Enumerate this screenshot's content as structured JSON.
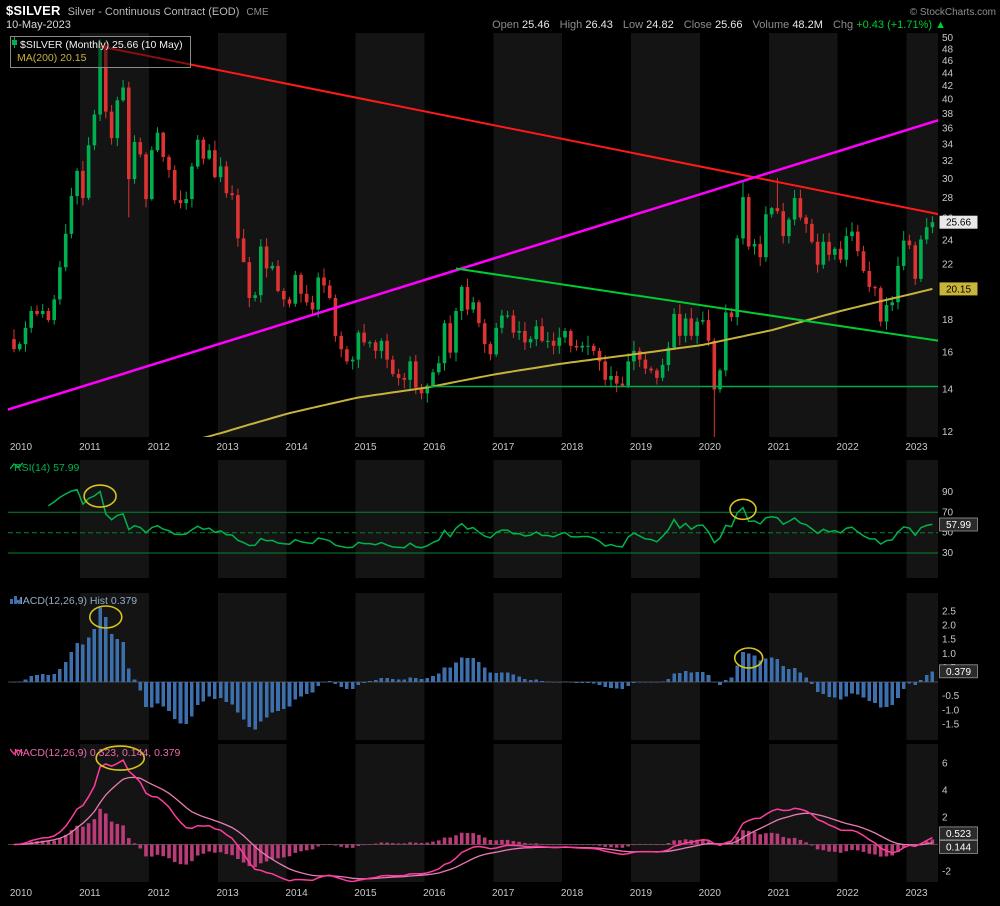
{
  "header": {
    "symbol": "$SILVER",
    "title": "Silver - Continuous Contract (EOD)",
    "exchange": "CME",
    "date": "10-May-2023",
    "copyright": "© StockCharts.com",
    "quote": {
      "open_label": "Open",
      "open": "25.46",
      "high_label": "High",
      "high": "26.43",
      "low_label": "Low",
      "low": "24.82",
      "close_label": "Close",
      "close": "25.66",
      "volume_label": "Volume",
      "volume": "48.2M",
      "chg_label": "Chg",
      "chg": "+0.43 (+1.71%)",
      "chg_dir": "▲"
    }
  },
  "colors": {
    "band": "#141414",
    "up": "#00b050",
    "down": "#dd3333",
    "ma": "#c7b23a",
    "rsi": "#00b44c",
    "rsi_ref": "#00882a",
    "hist": "#3e6fad",
    "macd_line": "#ff3d9e",
    "macd_signal": "#e87bb4",
    "macd_hist": "#b93b78",
    "circle": "#d8c51c",
    "axis_text": "#c8c8c8",
    "zero_line": "#4a4a4a"
  },
  "chart_data": [
    {
      "type": "candlestick",
      "name": "$SILVER Monthly price",
      "legend": {
        "line1": "$SILVER (Monthly) 25.66 (10 May)",
        "line2": "MA(200) 20.15"
      },
      "years": [
        "2010",
        "2011",
        "2012",
        "2013",
        "2014",
        "2015",
        "2016",
        "2017",
        "2018",
        "2019",
        "2020",
        "2021",
        "2022",
        "2023"
      ],
      "log_scale": true,
      "ylim": [
        11.8,
        50.9
      ],
      "yticks": [
        "50",
        "48",
        "46",
        "44",
        "42",
        "40",
        "38",
        "36",
        "34",
        "32",
        "30",
        "28",
        "26",
        "24",
        "22",
        "20",
        "18",
        "16",
        "14",
        "12"
      ],
      "first_open": 16.8,
      "closes": [
        16.2,
        16.5,
        17.5,
        18.6,
        18.4,
        18.6,
        18.0,
        19.4,
        21.8,
        24.6,
        28.2,
        30.9,
        28.0,
        33.9,
        37.9,
        48.6,
        38.3,
        34.8,
        39.9,
        41.8,
        30.0,
        34.3,
        32.8,
        27.9,
        33.3,
        35.5,
        32.5,
        31.0,
        27.8,
        27.5,
        27.9,
        31.4,
        34.6,
        32.3,
        33.3,
        30.2,
        31.4,
        28.5,
        28.3,
        24.2,
        22.2,
        19.5,
        19.7,
        23.5,
        21.7,
        21.9,
        20.0,
        19.4,
        19.1,
        21.2,
        19.8,
        19.2,
        18.7,
        21.0,
        20.4,
        19.5,
        17.0,
        16.2,
        15.5,
        15.6,
        17.2,
        16.6,
        16.6,
        16.1,
        16.7,
        15.6,
        14.8,
        14.6,
        14.5,
        15.5,
        14.1,
        13.8,
        14.2,
        14.9,
        15.4,
        17.8,
        16.0,
        18.6,
        20.3,
        18.7,
        19.2,
        17.8,
        16.5,
        15.9,
        17.5,
        18.3,
        18.3,
        17.2,
        17.3,
        16.6,
        16.8,
        17.6,
        16.7,
        16.7,
        16.4,
        16.9,
        17.3,
        16.4,
        16.3,
        16.4,
        16.4,
        16.1,
        15.5,
        14.5,
        14.7,
        14.3,
        14.2,
        15.5,
        16.1,
        15.6,
        15.1,
        15.0,
        14.6,
        15.3,
        16.3,
        18.4,
        17.0,
        18.1,
        17.0,
        17.9,
        18.0,
        16.7,
        14.0,
        15.0,
        18.5,
        18.2,
        24.2,
        28.1,
        23.5,
        23.7,
        22.6,
        26.4,
        27.0,
        26.7,
        24.4,
        25.9,
        28.0,
        26.1,
        25.5,
        23.9,
        22.0,
        23.9,
        22.8,
        23.3,
        22.4,
        24.4,
        24.8,
        23.1,
        21.5,
        20.3,
        20.2,
        17.9,
        19.0,
        19.2,
        21.9,
        24.0,
        23.6,
        20.9,
        24.1,
        25.2,
        25.66
      ],
      "wick_overrides": {
        "15": {
          "high": 49.8
        },
        "20": {
          "low": 26.1
        },
        "40": {
          "low": 23.0
        },
        "122": {
          "low": 11.65
        },
        "127": {
          "high": 29.9
        },
        "133": {
          "high": 30.1
        }
      },
      "ma200": {
        "period": 200,
        "anchors": [
          [
            30,
            11.55
          ],
          [
            36,
            11.95
          ],
          [
            48,
            12.85
          ],
          [
            60,
            13.6
          ],
          [
            72,
            14.1
          ],
          [
            84,
            14.8
          ],
          [
            96,
            15.4
          ],
          [
            108,
            15.9
          ],
          [
            120,
            16.45
          ],
          [
            132,
            17.35
          ],
          [
            144,
            18.6
          ],
          [
            156,
            19.75
          ],
          [
            160,
            20.15
          ]
        ]
      },
      "trendlines": [
        {
          "name": "long-term-resistance",
          "color": "#ff1a1a",
          "width": 2,
          "from": [
            15,
            48.5
          ],
          "to": [
            163,
            26.2
          ]
        },
        {
          "name": "long-term-support",
          "color": "#ff00ff",
          "width": 2.5,
          "from": [
            -3,
            12.85
          ],
          "to": [
            163,
            37.6
          ]
        },
        {
          "name": "wedge-resistance",
          "color": "#00cc33",
          "width": 2,
          "from": [
            77,
            21.7
          ],
          "to": [
            163,
            16.6
          ]
        },
        {
          "name": "horizontal-support",
          "color": "#00aa44",
          "width": 1.5,
          "from": [
            72,
            14.15
          ],
          "to": [
            163,
            14.15
          ]
        }
      ],
      "flags": [
        {
          "value": 25.66,
          "text": "25.66",
          "bg": "#e8e8e8",
          "fg": "#000000"
        },
        {
          "value": 20.15,
          "text": "20.15",
          "bg": "#c9b43a",
          "fg": "#000000"
        }
      ]
    },
    {
      "type": "line",
      "name": "RSI(14)",
      "legend": "RSI(14) 57.99",
      "period": 14,
      "last": 57.99,
      "yticks": [
        "90",
        "70",
        "50",
        "30"
      ],
      "ref_lines": [
        {
          "value": 70
        },
        {
          "value": 50,
          "dashed": true
        },
        {
          "value": 30
        }
      ],
      "flag": {
        "value": 57.99,
        "text": "57.99"
      }
    },
    {
      "type": "bar",
      "name": "MACD Histogram",
      "legend": "MACD(12,26,9) Hist 0.379",
      "params": [
        12,
        26,
        9
      ],
      "last": 0.379,
      "yticks": [
        "2.5",
        "2.0",
        "1.5",
        "1.0",
        "0.5",
        "-0.5",
        "-1.0",
        "-1.5"
      ],
      "flag": {
        "value": 0.379,
        "text": "0.379"
      }
    },
    {
      "type": "line",
      "name": "MACD lines",
      "legend": "MACD(12,26,9) 0.523, 0.144, 0.379",
      "params": [
        12,
        26,
        9
      ],
      "macd": 0.523,
      "signal": 0.144,
      "hist": 0.379,
      "yticks": [
        "6",
        "4",
        "2",
        "-2"
      ],
      "flags": [
        {
          "value": 0.523,
          "text": "0.523"
        },
        {
          "value": 0.144,
          "text": "0.144"
        }
      ]
    }
  ],
  "annotations": [
    {
      "pane": "rsi",
      "i": 15,
      "v": 86,
      "rx": 16,
      "ry": 11
    },
    {
      "pane": "rsi",
      "i": 127,
      "v": 73,
      "rx": 13,
      "ry": 10
    },
    {
      "pane": "hist",
      "i": 16,
      "v": 2.3,
      "rx": 16,
      "ry": 11
    },
    {
      "pane": "hist",
      "i": 128,
      "v": 0.85,
      "rx": 14,
      "ry": 10
    },
    {
      "pane": "macd",
      "i": 18.5,
      "v": 6.4,
      "rx": 24,
      "ry": 12
    }
  ]
}
